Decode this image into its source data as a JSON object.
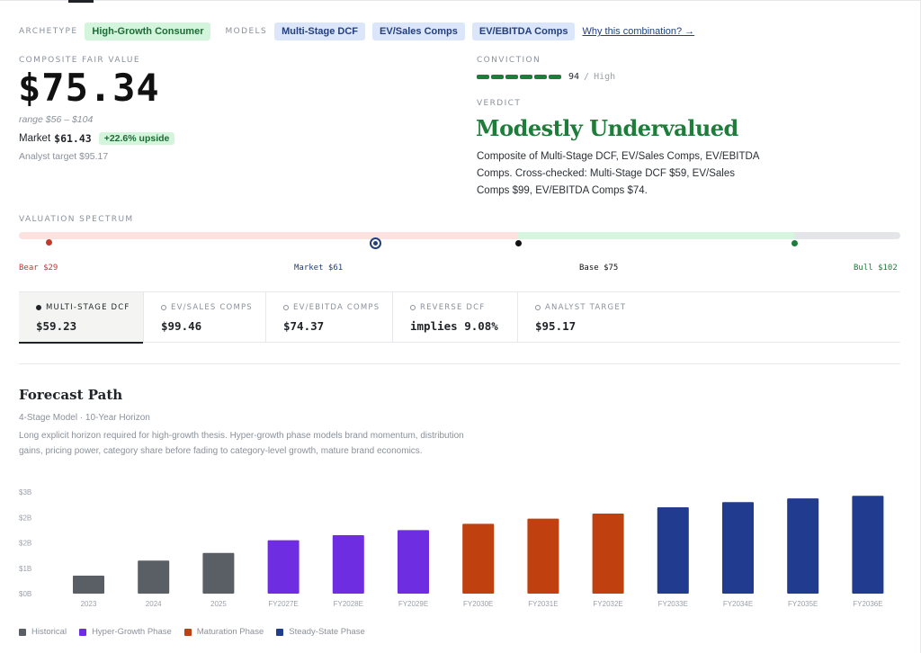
{
  "header": {
    "archetype_label": "ARCHETYPE",
    "archetype_value": "High-Growth Consumer",
    "models_label": "MODELS",
    "models": [
      "Multi-Stage DCF",
      "EV/Sales Comps",
      "EV/EBITDA Comps"
    ],
    "why_link": "Why this combination? →"
  },
  "fair_value": {
    "label": "COMPOSITE FAIR VALUE",
    "value": "$75.34",
    "range": "range $56 – $104",
    "market_label": "Market",
    "market_value": "$61.43",
    "upside": "+22.6% upside",
    "analyst_target": "Analyst target $95.17"
  },
  "conviction": {
    "label": "CONVICTION",
    "score": "94",
    "separator": "/",
    "level": "High",
    "segments": 6
  },
  "verdict": {
    "label": "VERDICT",
    "title": "Modestly Undervalued",
    "text": "Composite of Multi-Stage DCF, EV/Sales Comps, EV/EBITDA Comps. Cross-checked: Multi-Stage DCF $59, EV/Sales Comps $99, EV/EBITDA Comps $74."
  },
  "spectrum": {
    "label": "VALUATION SPECTRUM",
    "bear": "Bear $29",
    "market": "Market $61",
    "base": "Base $75",
    "bull": "Bull $102"
  },
  "model_tabs": [
    {
      "name": "MULTI-STAGE DCF",
      "value": "$59.23",
      "active": true
    },
    {
      "name": "EV/SALES COMPS",
      "value": "$99.46",
      "active": false
    },
    {
      "name": "EV/EBITDA COMPS",
      "value": "$74.37",
      "active": false
    },
    {
      "name": "REVERSE DCF",
      "value": "implies 9.08%",
      "active": false
    },
    {
      "name": "ANALYST TARGET",
      "value": "$95.17",
      "active": false
    }
  ],
  "forecast": {
    "title": "Forecast Path",
    "subtitle": "4-Stage Model · 10-Year Horizon",
    "description": "Long explicit horizon required for high-growth thesis. Hyper-growth phase models brand momentum, distribution gains, pricing power, category share before fading to category-level growth, mature brand economics."
  },
  "colors": {
    "historical": "#5a5f66",
    "hyper": "#6e2de0",
    "maturation": "#c0400f",
    "steady": "#213b8f",
    "green": "#1e7d3a",
    "red": "#c0392b",
    "navy": "#23407d"
  },
  "chart_data": {
    "type": "bar",
    "categories": [
      "2023",
      "2024",
      "2025",
      "FY2027E",
      "FY2028E",
      "FY2029E",
      "FY2030E",
      "FY2031E",
      "FY2032E",
      "FY2033E",
      "FY2034E",
      "FY2035E",
      "FY2036E"
    ],
    "values": [
      0.71,
      1.3,
      1.6,
      2.1,
      2.3,
      2.5,
      2.75,
      2.95,
      3.15,
      3.4,
      3.6,
      3.75,
      3.85
    ],
    "phases": [
      "historical",
      "historical",
      "historical",
      "hyper",
      "hyper",
      "hyper",
      "maturation",
      "maturation",
      "maturation",
      "steady",
      "steady",
      "steady",
      "steady"
    ],
    "y_ticks": [
      "$0B",
      "$1B",
      "$2B",
      "$2B",
      "$3B"
    ],
    "ylim": [
      0,
      4
    ],
    "legend": [
      {
        "key": "historical",
        "name": "Historical"
      },
      {
        "key": "hyper",
        "name": "Hyper-Growth Phase"
      },
      {
        "key": "maturation",
        "name": "Maturation Phase"
      },
      {
        "key": "steady",
        "name": "Steady-State Phase"
      }
    ],
    "legend_position": "bottom-left",
    "grid": false
  }
}
